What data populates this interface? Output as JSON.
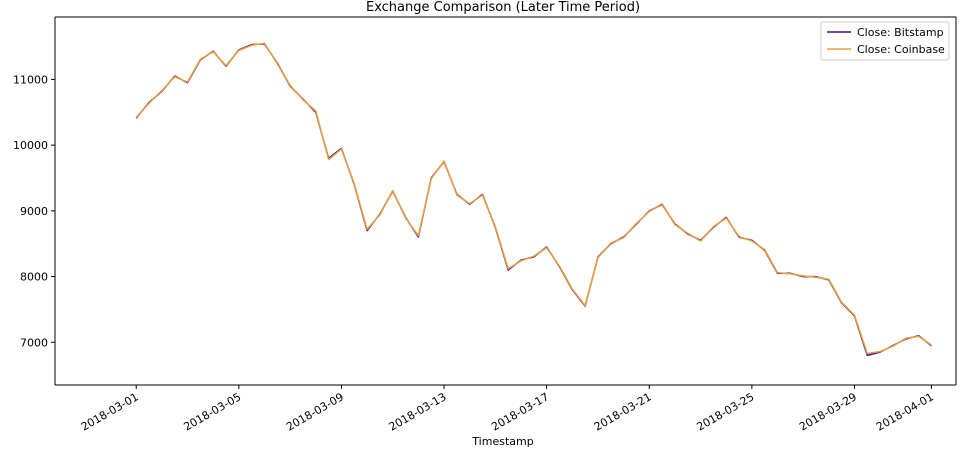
{
  "chart_data": {
    "type": "line",
    "title": "Exchange Comparison (Later Time Period)",
    "xlabel": "Timestamp",
    "ylabel": "",
    "xlim": [
      "2018-02-25T20:00",
      "2018-04-01T23:00"
    ],
    "ylim": [
      6350,
      11950
    ],
    "x_ticks": [
      "2018-03-01",
      "2018-03-05",
      "2018-03-09",
      "2018-03-13",
      "2018-03-17",
      "2018-03-21",
      "2018-03-25",
      "2018-03-29",
      "2018-04-01"
    ],
    "y_ticks": [
      7000,
      8000,
      9000,
      10000,
      11000
    ],
    "grid": false,
    "legend_position": "top-right",
    "x": [
      "2018-03-01T00:00",
      "2018-03-01T12:00",
      "2018-03-02T00:00",
      "2018-03-02T12:00",
      "2018-03-03T00:00",
      "2018-03-03T12:00",
      "2018-03-04T00:00",
      "2018-03-04T12:00",
      "2018-03-05T00:00",
      "2018-03-05T12:00",
      "2018-03-06T00:00",
      "2018-03-06T12:00",
      "2018-03-07T00:00",
      "2018-03-07T12:00",
      "2018-03-08T00:00",
      "2018-03-08T12:00",
      "2018-03-09T00:00",
      "2018-03-09T12:00",
      "2018-03-10T00:00",
      "2018-03-10T12:00",
      "2018-03-11T00:00",
      "2018-03-11T12:00",
      "2018-03-12T00:00",
      "2018-03-12T12:00",
      "2018-03-13T00:00",
      "2018-03-13T12:00",
      "2018-03-14T00:00",
      "2018-03-14T12:00",
      "2018-03-15T00:00",
      "2018-03-15T12:00",
      "2018-03-16T00:00",
      "2018-03-16T12:00",
      "2018-03-17T00:00",
      "2018-03-17T12:00",
      "2018-03-18T00:00",
      "2018-03-18T12:00",
      "2018-03-19T00:00",
      "2018-03-19T12:00",
      "2018-03-20T00:00",
      "2018-03-20T12:00",
      "2018-03-21T00:00",
      "2018-03-21T12:00",
      "2018-03-22T00:00",
      "2018-03-22T12:00",
      "2018-03-23T00:00",
      "2018-03-23T12:00",
      "2018-03-24T00:00",
      "2018-03-24T12:00",
      "2018-03-25T00:00",
      "2018-03-25T12:00",
      "2018-03-26T00:00",
      "2018-03-26T12:00",
      "2018-03-27T00:00",
      "2018-03-27T12:00",
      "2018-03-28T00:00",
      "2018-03-28T12:00",
      "2018-03-29T00:00",
      "2018-03-29T12:00",
      "2018-03-30T00:00",
      "2018-03-30T12:00",
      "2018-03-31T00:00",
      "2018-03-31T12:00",
      "2018-04-01T00:00"
    ],
    "series": [
      {
        "name": "Close: Bitstamp",
        "color": "#3b0ea0",
        "values": [
          10410,
          10650,
          10820,
          11050,
          10950,
          11300,
          11430,
          11200,
          11450,
          11530,
          11540,
          11250,
          10900,
          10700,
          10500,
          9800,
          9950,
          9400,
          8700,
          8950,
          9300,
          8900,
          8600,
          9500,
          9750,
          9250,
          9100,
          9250,
          8750,
          8100,
          8250,
          8300,
          8450,
          8150,
          7800,
          7550,
          8300,
          8500,
          8600,
          8800,
          9000,
          9100,
          8800,
          8650,
          8550,
          8750,
          8900,
          8600,
          8550,
          8400,
          8050,
          8050,
          8000,
          8000,
          7950,
          7600,
          7400,
          6800,
          6850,
          6950,
          7050,
          7100,
          6950
        ]
      },
      {
        "name": "Close: Coinbase",
        "color": "#e8a23a",
        "values": [
          10420,
          10640,
          10830,
          11040,
          10960,
          11310,
          11420,
          11210,
          11440,
          11520,
          11550,
          11240,
          10910,
          10690,
          10520,
          9780,
          9940,
          9410,
          8720,
          8940,
          9310,
          8890,
          8620,
          9490,
          9760,
          9240,
          9110,
          9240,
          8760,
          8120,
          8240,
          8310,
          8440,
          8160,
          7810,
          7560,
          8290,
          8510,
          8590,
          8810,
          8990,
          9110,
          8790,
          8660,
          8540,
          8760,
          8890,
          8610,
          8540,
          8410,
          8060,
          8040,
          8010,
          7990,
          7960,
          7610,
          7410,
          6830,
          6860,
          6940,
          7060,
          7090,
          6960
        ]
      }
    ]
  }
}
